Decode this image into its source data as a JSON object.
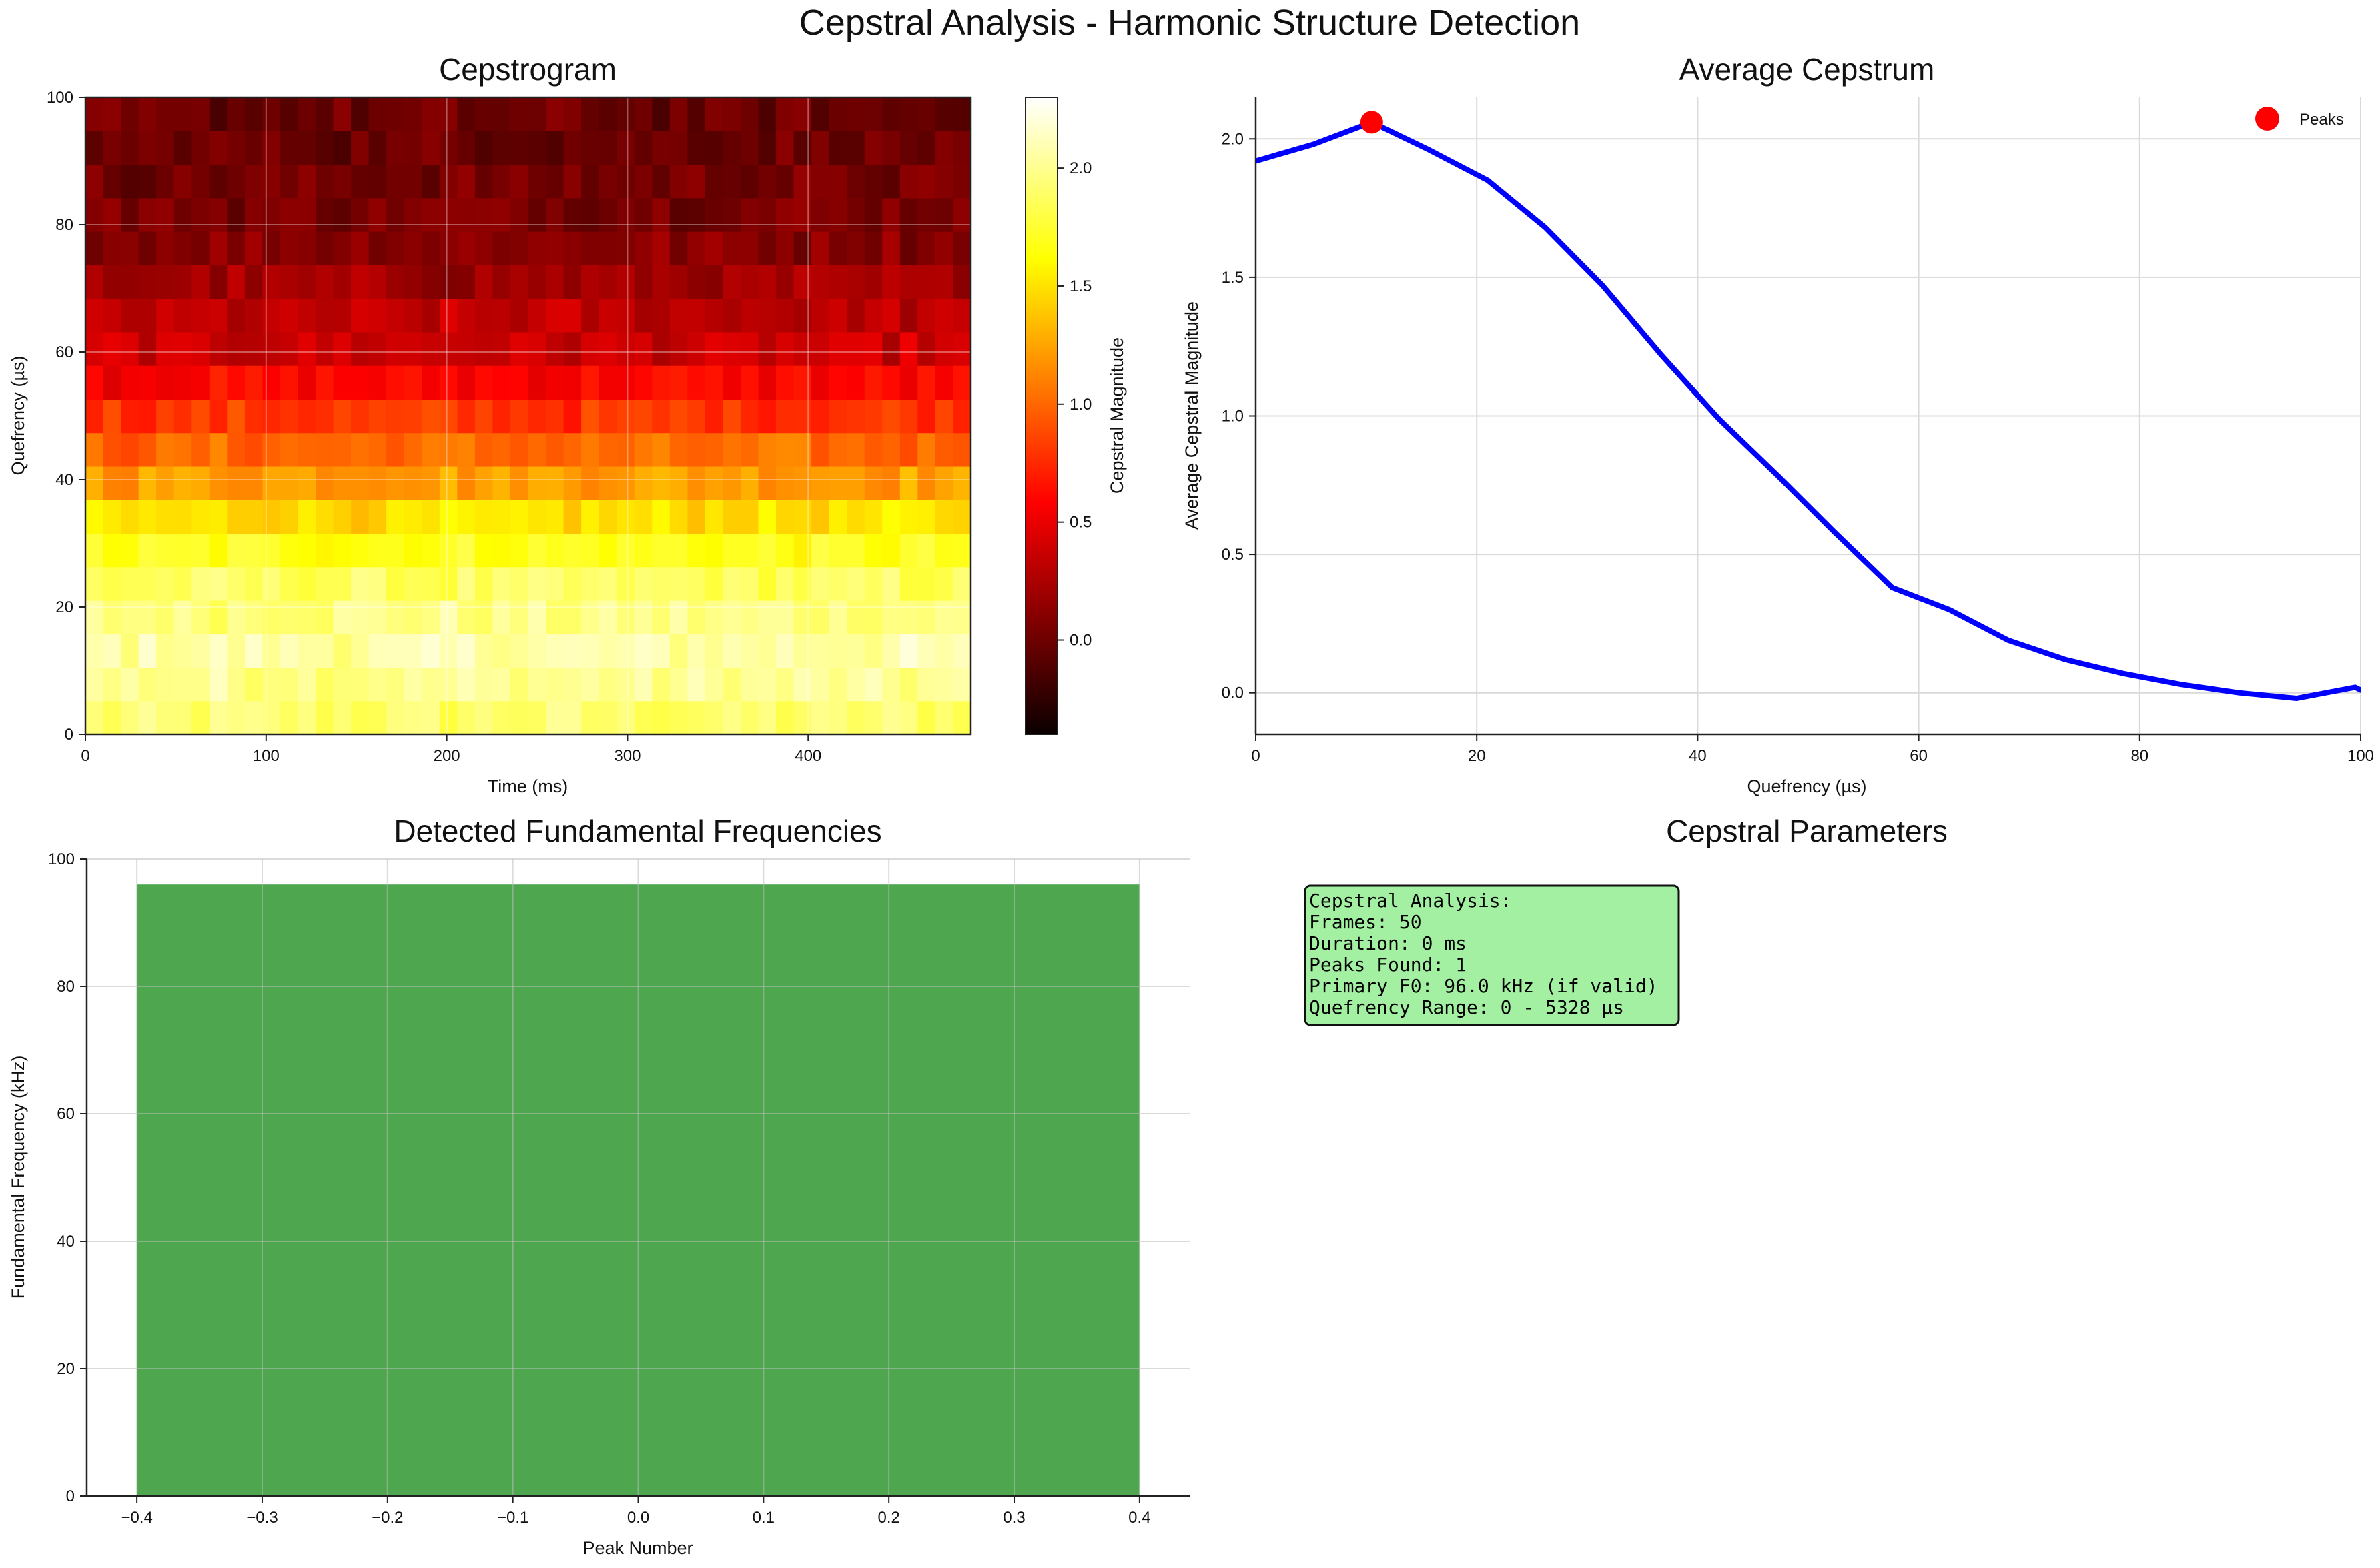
{
  "figure": {
    "suptitle": "Cepstral Analysis - Harmonic Structure Detection"
  },
  "chart_data": [
    {
      "type": "heatmap",
      "title": "Cepstrogram",
      "xlabel": "Time (ms)",
      "ylabel": "Quefrency (µs)",
      "xlim": [
        0,
        490
      ],
      "ylim": [
        0,
        100
      ],
      "xticks": [
        0,
        100,
        200,
        300,
        400
      ],
      "yticks": [
        0,
        20,
        40,
        60,
        80,
        100
      ],
      "grid": true,
      "colormap": "hot",
      "colorbar": {
        "label": "Cepstral Magnitude",
        "vmin": -0.4,
        "vmax": 2.3,
        "ticks": [
          0.0,
          0.5,
          1.0,
          1.5,
          2.0
        ]
      },
      "frames": 50,
      "quefrency_bins": 19,
      "row_mean_values": [
        1.9,
        2.0,
        2.06,
        1.97,
        1.86,
        1.69,
        1.48,
        1.24,
        1.0,
        0.8,
        0.59,
        0.38,
        0.31,
        0.2,
        0.12,
        0.07,
        0.03,
        0.0,
        -0.02
      ],
      "row_noise": 0.12
    },
    {
      "type": "line",
      "title": "Average Cepstrum",
      "xlabel": "Quefrency (µs)",
      "ylabel": "Average Cepstral Magnitude",
      "xlim": [
        0,
        100
      ],
      "ylim": [
        -0.15,
        2.15
      ],
      "xticks": [
        0,
        20,
        40,
        60,
        80,
        100
      ],
      "yticks": [
        0.0,
        0.5,
        1.0,
        1.5,
        2.0
      ],
      "grid": true,
      "legend_position": "top-right",
      "series": [
        {
          "color": "#0000ff",
          "x": [
            0,
            5.2,
            10.5,
            15.7,
            21,
            26.2,
            31.4,
            36.7,
            41.9,
            47.1,
            52.4,
            57.6,
            62.8,
            68.1,
            73.3,
            78.5,
            83.8,
            89,
            94.2,
            99.5,
            100
          ],
          "values": [
            1.92,
            1.98,
            2.06,
            1.96,
            1.85,
            1.68,
            1.47,
            1.22,
            0.99,
            0.79,
            0.58,
            0.38,
            0.3,
            0.19,
            0.12,
            0.07,
            0.03,
            0.0,
            -0.02,
            0.02,
            0.01
          ]
        },
        {
          "name": "Peaks",
          "color": "#ff0000",
          "marker": "circle",
          "x": [
            10.5
          ],
          "values": [
            2.06
          ]
        }
      ]
    },
    {
      "type": "bar",
      "title": "Detected Fundamental Frequencies",
      "xlabel": "Peak Number",
      "ylabel": "Fundamental Frequency (kHz)",
      "xlim": [
        -0.44,
        0.44
      ],
      "ylim": [
        0,
        100
      ],
      "xticks": [
        -0.4,
        -0.3,
        -0.2,
        -0.1,
        0.0,
        0.1,
        0.2,
        0.3,
        0.4
      ],
      "yticks": [
        0,
        20,
        40,
        60,
        80,
        100
      ],
      "grid": true,
      "bar_color": "#4ea64e",
      "categories": [
        0
      ],
      "bar_width": 0.8,
      "values": [
        96.0
      ]
    }
  ],
  "params": {
    "title": "Cepstral Parameters",
    "lines": [
      "Cepstral Analysis:",
      "Frames: 50",
      "Duration: 0 ms",
      "Peaks Found: 1",
      "Primary F0: 96.0 kHz (if valid)",
      "Quefrency Range: 0 - 5328 µs"
    ],
    "box_color": "#a3f0a3"
  }
}
